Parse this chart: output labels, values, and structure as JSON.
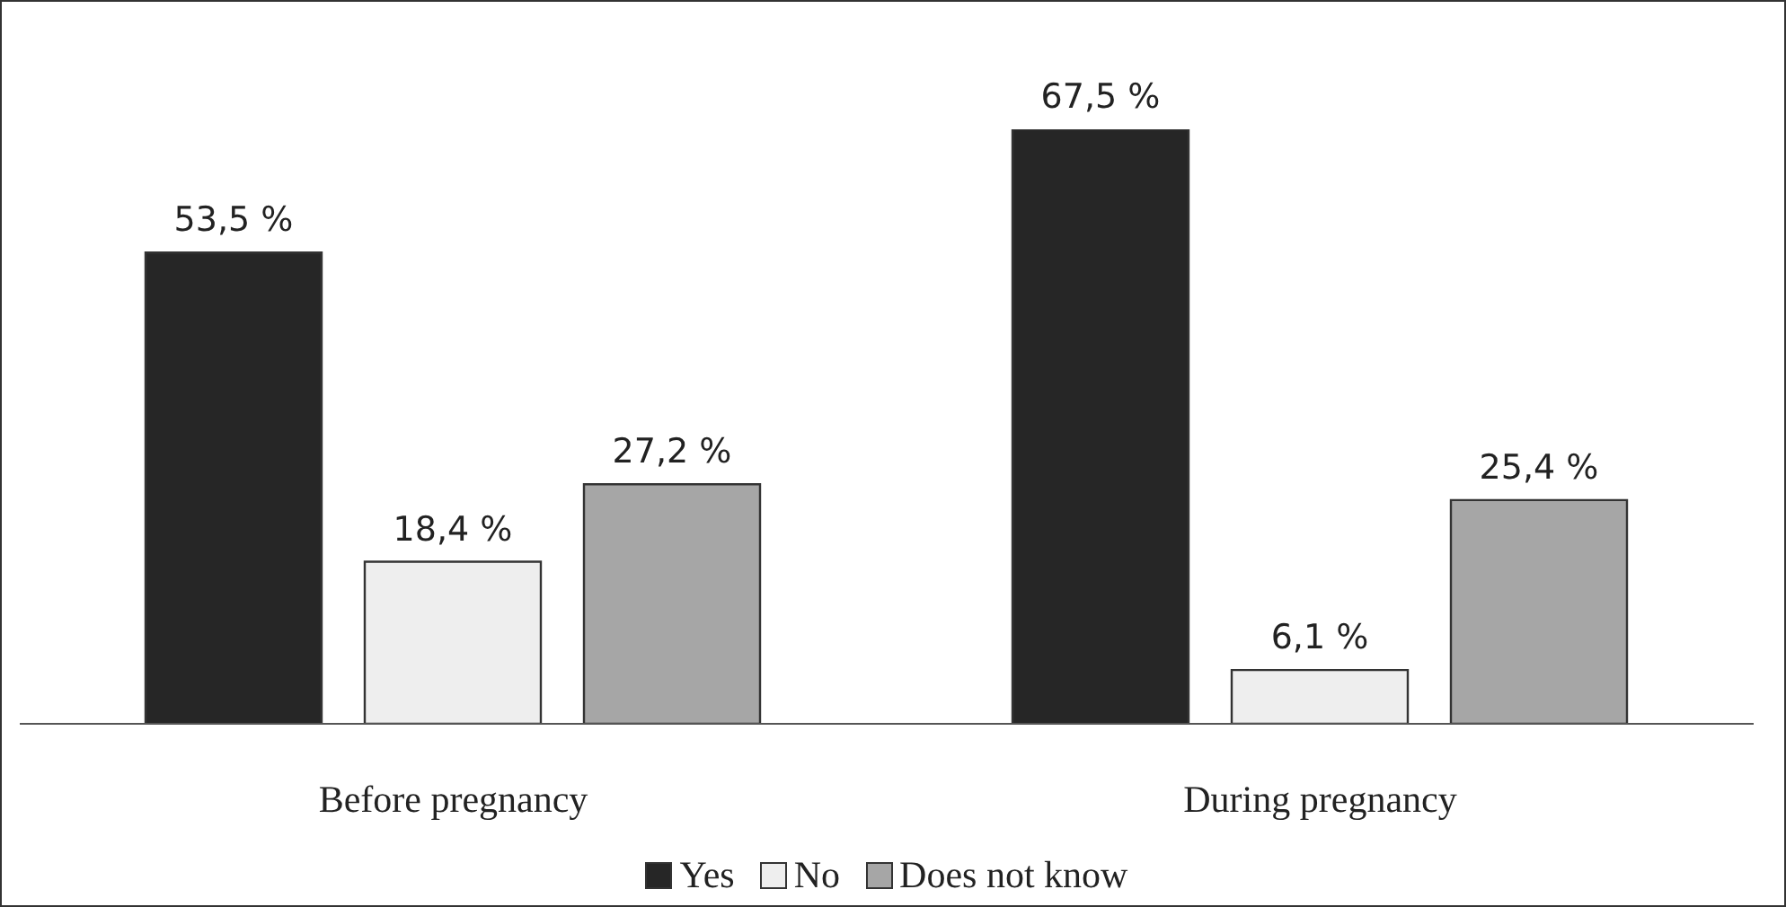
{
  "chart_data": {
    "type": "bar",
    "categories": [
      "Before pregnancy",
      "During pregnancy"
    ],
    "series": [
      {
        "name": "Yes",
        "color": "#262626",
        "values": [
          53.5,
          67.5
        ],
        "value_labels": [
          "53,5 %",
          "67,5 %"
        ]
      },
      {
        "name": "No",
        "color": "#eeeeee",
        "values": [
          18.4,
          6.1
        ],
        "value_labels": [
          "18,4 %",
          "6,1 %"
        ]
      },
      {
        "name": "Does not know",
        "color": "#a6a6a6",
        "values": [
          27.2,
          25.4
        ],
        "value_labels": [
          "27,2 %",
          "25,4 %"
        ]
      }
    ],
    "legend": "bottom"
  }
}
